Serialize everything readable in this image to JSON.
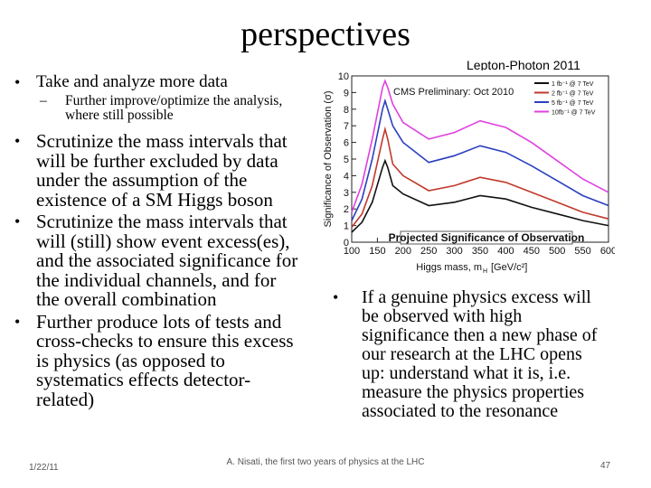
{
  "slide": {
    "title": "perspectives",
    "left_bullets": [
      "Take and analyze more data",
      "Scrutinize the mass intervals that will be further excluded by data under the assumption of the existence of a SM Higgs boson",
      "Scrutinize the mass intervals that will (still) show event excess(es), and the associated significance for the individual channels, and for the overall combination",
      "Further produce lots of tests and cross-checks to ensure this excess is physics (as opposed to systematics effects detector-related)"
    ],
    "sub_bullet": "Further improve/optimize the analysis, where still possible",
    "right_bullet": "If a genuine physics excess will be observed with high significance then a new phase of our research at the LHC opens up: understand what it is, i.e. measure the physics properties associated to the resonance",
    "figure_label": "Lepton-Photon 2011"
  },
  "footer": {
    "date": "1/22/11",
    "center": "A. Nisati, the first two years of physics at the LHC",
    "page": "47"
  },
  "chart_data": {
    "type": "line",
    "title": "Projected Significance of Observation",
    "inset_label": "CMS Preliminary: Oct 2010",
    "xlabel": "Higgs mass, m",
    "xlabel_sub": "H",
    "xlabel_unit": "[GeV/c²]",
    "ylabel": "Significance of Observation (σ)",
    "xlim": [
      100,
      600
    ],
    "ylim": [
      0,
      10
    ],
    "xticks": [
      "100",
      "150",
      "200",
      "250",
      "300",
      "350",
      "400",
      "450",
      "500",
      "550",
      "600"
    ],
    "yticks": [
      "0",
      "1",
      "2",
      "3",
      "4",
      "5",
      "6",
      "7",
      "8",
      "9",
      "10"
    ],
    "grid": false,
    "legend_position": "top-right",
    "x": [
      100,
      120,
      140,
      160,
      165,
      170,
      180,
      200,
      250,
      300,
      350,
      400,
      450,
      500,
      550,
      600
    ],
    "series": [
      {
        "name": "1 fb⁻¹ @ 7 TeV",
        "color": "#111111",
        "values": [
          0.6,
          1.2,
          2.4,
          4.5,
          4.9,
          4.5,
          3.4,
          2.9,
          2.2,
          2.4,
          2.8,
          2.6,
          2.1,
          1.7,
          1.3,
          1.0
        ]
      },
      {
        "name": "2 fb⁻¹ @ 7 TeV",
        "color": "#c0392b",
        "values": [
          0.9,
          1.7,
          3.4,
          6.2,
          6.8,
          6.2,
          4.7,
          4.0,
          3.1,
          3.4,
          3.9,
          3.6,
          3.0,
          2.4,
          1.8,
          1.4
        ]
      },
      {
        "name": "5 fb⁻¹ @ 7 TeV",
        "color": "#2a3fbf",
        "values": [
          1.3,
          2.6,
          5.0,
          8.0,
          8.5,
          8.0,
          7.0,
          6.0,
          4.8,
          5.2,
          5.8,
          5.4,
          4.6,
          3.7,
          2.8,
          2.2
        ]
      },
      {
        "name": "10fb⁻¹ @ 7 TeV",
        "color": "#e040e0",
        "values": [
          1.8,
          3.5,
          6.2,
          9.3,
          9.7,
          9.3,
          8.3,
          7.2,
          6.2,
          6.6,
          7.3,
          6.9,
          6.0,
          4.9,
          3.8,
          3.0
        ]
      }
    ]
  }
}
